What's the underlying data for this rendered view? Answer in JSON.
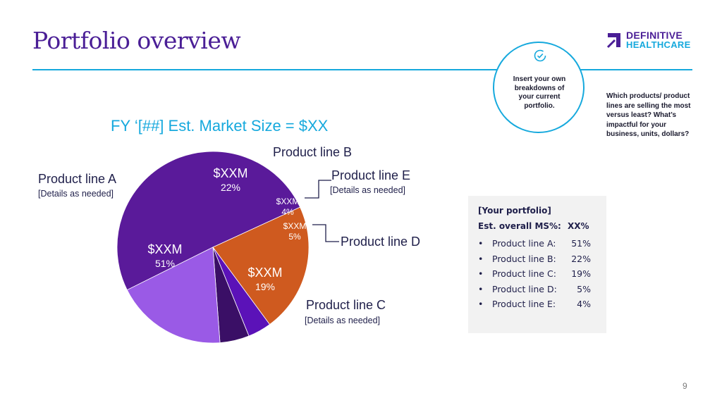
{
  "slide": {
    "title": "Portfolio overview",
    "page_number": "9",
    "brand": {
      "line1": "DEFINITIVE",
      "line2": "HEALTHCARE",
      "primary": "#4a1e96",
      "accent": "#16a9dd"
    },
    "callout": {
      "icon": "check-circle-icon",
      "text": "Insert your own breakdowns of your current portfolio."
    },
    "side_note": "Which products/ product lines are selling the most versus least? What’s impactful for your business, units, dollars?"
  },
  "chart_data": {
    "type": "pie",
    "title": "FY ‘[##] Est. Market Size = $XX",
    "slices": [
      {
        "name": "Product line A",
        "value": 51,
        "value_label": "$XXM",
        "pct_label": "51%",
        "details": "[Details as needed]",
        "color": "#5a1a9a"
      },
      {
        "name": "Product line B",
        "value": 22,
        "value_label": "$XXM",
        "pct_label": "22%",
        "details": "",
        "color": "#cf5a1f"
      },
      {
        "name": "Product line E",
        "value": 4,
        "value_label": "$XXM",
        "pct_label": "4%",
        "details": "[Details as needed]",
        "color": "#5b12b8"
      },
      {
        "name": "Product line D",
        "value": 5,
        "value_label": "$XXM",
        "pct_label": "5%",
        "details": "",
        "color": "#3a0f66"
      },
      {
        "name": "Product line C",
        "value": 19,
        "value_label": "$XXM",
        "pct_label": "19%",
        "details": "[Details as needed]",
        "color": "#9a5ae6"
      }
    ]
  },
  "portfolio": {
    "title": "[Your portfolio]",
    "ms_label": "Est. overall MS%:",
    "ms_value": "XX%",
    "items": [
      {
        "name": "Product line A:",
        "pct": "51%"
      },
      {
        "name": "Product line B:",
        "pct": "22%"
      },
      {
        "name": "Product line C:",
        "pct": "19%"
      },
      {
        "name": "Product line D:",
        "pct": "5%"
      },
      {
        "name": "Product line E:",
        "pct": "4%"
      }
    ]
  }
}
